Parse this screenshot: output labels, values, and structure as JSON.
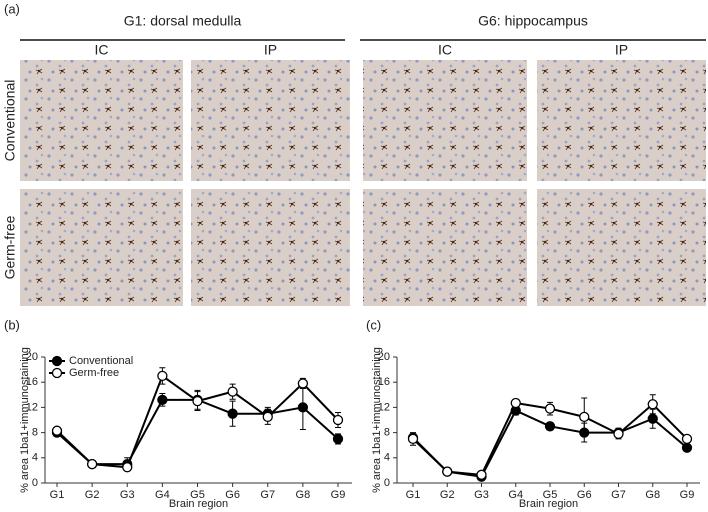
{
  "figure": {
    "panel_labels": [
      "(a)",
      "(b)",
      "(c)"
    ],
    "micrographs": {
      "groups": [
        {
          "title": "G1: dorsal medulla",
          "columns": [
            "IC",
            "IP"
          ]
        },
        {
          "title": "G6: hippocampus",
          "columns": [
            "IC",
            "IP"
          ]
        }
      ],
      "rows": [
        "Conventional",
        "Germ-free"
      ]
    }
  },
  "chart_data": [
    {
      "type": "line",
      "y_label": "% area 1ba1+immunostaining",
      "x_label": "Brain region",
      "categories": [
        "G1",
        "G2",
        "G3",
        "G4",
        "G5",
        "G6",
        "G7",
        "G8",
        "G9"
      ],
      "series": [
        {
          "name": "Conventional",
          "color": "#000000",
          "marker_fill": "#000000",
          "values": [
            8,
            3,
            3,
            13.2,
            13.2,
            11,
            11,
            12,
            7
          ],
          "errors": [
            0.5,
            0.3,
            1,
            1,
            1.5,
            2,
            1,
            3.5,
            0.8
          ]
        },
        {
          "name": "Germ-free",
          "color": "#000000",
          "marker_fill": "#ffffff",
          "values": [
            8.3,
            3,
            2.5,
            17,
            13,
            14.5,
            10.5,
            15.8,
            10
          ],
          "errors": [
            0.4,
            0.3,
            0.5,
            1.3,
            1.5,
            1.2,
            1.2,
            0.8,
            1.2
          ]
        }
      ],
      "ylim": [
        0,
        20
      ],
      "yticks": [
        0,
        4,
        8,
        12,
        16,
        20
      ],
      "legend": "upper left"
    },
    {
      "type": "line",
      "y_label": "% area 1ba1+immunostaining",
      "x_label": "Brain region",
      "categories": [
        "G1",
        "G2",
        "G3",
        "G4",
        "G5",
        "G6",
        "G7",
        "G8",
        "G9"
      ],
      "series": [
        {
          "color": "#000000",
          "marker_fill": "#000000",
          "values": [
            7.2,
            1.8,
            1,
            11.5,
            9,
            8,
            8,
            10.2,
            5.6
          ],
          "errors": [
            0.5,
            0.2,
            0.3,
            0.7,
            0.5,
            1.5,
            0.7,
            1.5,
            0.6
          ]
        },
        {
          "color": "#000000",
          "marker_fill": "#ffffff",
          "values": [
            7,
            1.8,
            1.3,
            12.7,
            11.8,
            10.5,
            7.8,
            12.5,
            7
          ],
          "errors": [
            1,
            0.2,
            0.3,
            0.5,
            1,
            3,
            0.8,
            1.5,
            0.4
          ]
        }
      ],
      "ylim": [
        0,
        20
      ],
      "yticks": [
        0,
        4,
        8,
        12,
        16,
        20
      ]
    }
  ]
}
